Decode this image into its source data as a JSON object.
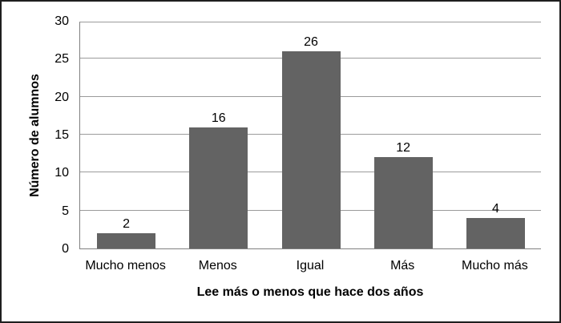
{
  "chart_data": {
    "type": "bar",
    "title": "",
    "categories": [
      "Mucho menos",
      "Menos",
      "Igual",
      "Más",
      "Mucho más"
    ],
    "values": [
      2,
      16,
      26,
      12,
      4
    ],
    "data_labels": [
      "2",
      "16",
      "26",
      "12",
      "4"
    ],
    "xlabel": "Lee más o menos que hace dos años",
    "ylabel": "Número de alumnos",
    "ylim": [
      0,
      30
    ],
    "yticks": [
      0,
      5,
      10,
      15,
      20,
      25,
      30
    ],
    "grid": "horizontal",
    "legend": "none",
    "colors": {
      "bar": "#636363",
      "gridline": "#9b9b9b",
      "axis": "#808080",
      "text": "#000000",
      "frame": "#1f1f1f",
      "background": "#ffffff"
    }
  }
}
